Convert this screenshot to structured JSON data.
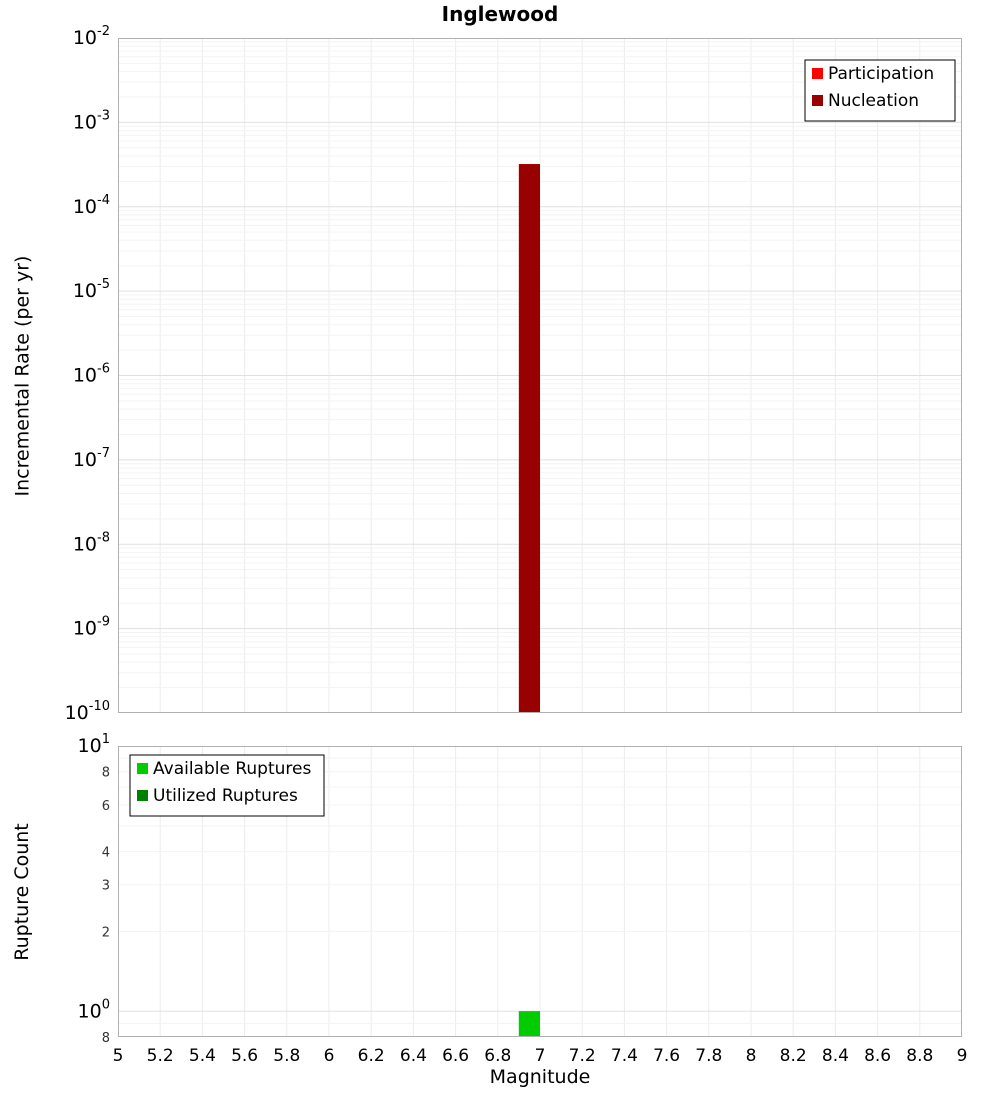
{
  "chart_data": [
    {
      "type": "bar",
      "title": "Inglewood",
      "ylabel": "Incremental Rate (per yr)",
      "xlabel": "",
      "yscale": "log",
      "ylim": [
        1e-10,
        0.01
      ],
      "xlim": [
        5,
        9
      ],
      "bar_width": 0.1,
      "show_xlabels": false,
      "legend_position": "top-right",
      "grid": true,
      "draw_order": [
        0,
        1
      ],
      "series": [
        {
          "name": "Participation",
          "color": "#ff0000",
          "x": [
            6.95
          ],
          "y": [
            0.00032
          ]
        },
        {
          "name": "Nucleation",
          "color": "#990000",
          "x": [
            6.95
          ],
          "y": [
            0.00032
          ]
        }
      ],
      "yticks": [
        {
          "value": 0.01,
          "exp": "-2"
        },
        {
          "value": 0.001,
          "exp": "-3"
        },
        {
          "value": 0.0001,
          "exp": "-4"
        },
        {
          "value": 1e-05,
          "exp": "-5"
        },
        {
          "value": 1e-06,
          "exp": "-6"
        },
        {
          "value": 1e-07,
          "exp": "-7"
        },
        {
          "value": 1e-08,
          "exp": "-8"
        },
        {
          "value": 1e-09,
          "exp": "-9"
        },
        {
          "value": 1e-10,
          "exp": "-10"
        }
      ],
      "xticks": [
        {
          "value": 5,
          "label": "5"
        },
        {
          "value": 5.2,
          "label": "5.2"
        },
        {
          "value": 5.4,
          "label": "5.4"
        },
        {
          "value": 5.6,
          "label": "5.6"
        },
        {
          "value": 5.8,
          "label": "5.8"
        },
        {
          "value": 6,
          "label": "6"
        },
        {
          "value": 6.2,
          "label": "6.2"
        },
        {
          "value": 6.4,
          "label": "6.4"
        },
        {
          "value": 6.6,
          "label": "6.6"
        },
        {
          "value": 6.8,
          "label": "6.8"
        },
        {
          "value": 7,
          "label": "7"
        },
        {
          "value": 7.2,
          "label": "7.2"
        },
        {
          "value": 7.4,
          "label": "7.4"
        },
        {
          "value": 7.6,
          "label": "7.6"
        },
        {
          "value": 7.8,
          "label": "7.8"
        },
        {
          "value": 8,
          "label": "8"
        },
        {
          "value": 8.2,
          "label": "8.2"
        },
        {
          "value": 8.4,
          "label": "8.4"
        },
        {
          "value": 8.6,
          "label": "8.6"
        },
        {
          "value": 8.8,
          "label": "8.8"
        },
        {
          "value": 9,
          "label": "9"
        }
      ]
    },
    {
      "type": "bar",
      "title": "",
      "ylabel": "Rupture Count",
      "xlabel": "Magnitude",
      "yscale": "log",
      "ylim": [
        0.8,
        10
      ],
      "xlim": [
        5,
        9
      ],
      "bar_width": 0.1,
      "show_xlabels": true,
      "legend_position": "top-left",
      "grid": true,
      "draw_order": [
        1,
        0
      ],
      "series": [
        {
          "name": "Available Ruptures",
          "color": "#00cc00",
          "x": [
            6.95
          ],
          "y": [
            1
          ]
        },
        {
          "name": "Utilized Ruptures",
          "color": "#008000",
          "x": [
            6.95
          ],
          "y": [
            1
          ]
        }
      ],
      "yticks": [
        {
          "value": 10,
          "exp": "1"
        },
        {
          "value": 8,
          "label": "8"
        },
        {
          "value": 6,
          "label": "6"
        },
        {
          "value": 4,
          "label": "4"
        },
        {
          "value": 3,
          "label": "3"
        },
        {
          "value": 2,
          "label": "2"
        },
        {
          "value": 1,
          "exp": "0"
        },
        {
          "value": 0.8,
          "label": "8"
        }
      ],
      "xticks": [
        {
          "value": 5,
          "label": "5"
        },
        {
          "value": 5.2,
          "label": "5.2"
        },
        {
          "value": 5.4,
          "label": "5.4"
        },
        {
          "value": 5.6,
          "label": "5.6"
        },
        {
          "value": 5.8,
          "label": "5.8"
        },
        {
          "value": 6,
          "label": "6"
        },
        {
          "value": 6.2,
          "label": "6.2"
        },
        {
          "value": 6.4,
          "label": "6.4"
        },
        {
          "value": 6.6,
          "label": "6.6"
        },
        {
          "value": 6.8,
          "label": "6.8"
        },
        {
          "value": 7,
          "label": "7"
        },
        {
          "value": 7.2,
          "label": "7.2"
        },
        {
          "value": 7.4,
          "label": "7.4"
        },
        {
          "value": 7.6,
          "label": "7.6"
        },
        {
          "value": 7.8,
          "label": "7.8"
        },
        {
          "value": 8,
          "label": "8"
        },
        {
          "value": 8.2,
          "label": "8.2"
        },
        {
          "value": 8.4,
          "label": "8.4"
        },
        {
          "value": 8.6,
          "label": "8.6"
        },
        {
          "value": 8.8,
          "label": "8.8"
        },
        {
          "value": 9,
          "label": "9"
        }
      ]
    }
  ]
}
